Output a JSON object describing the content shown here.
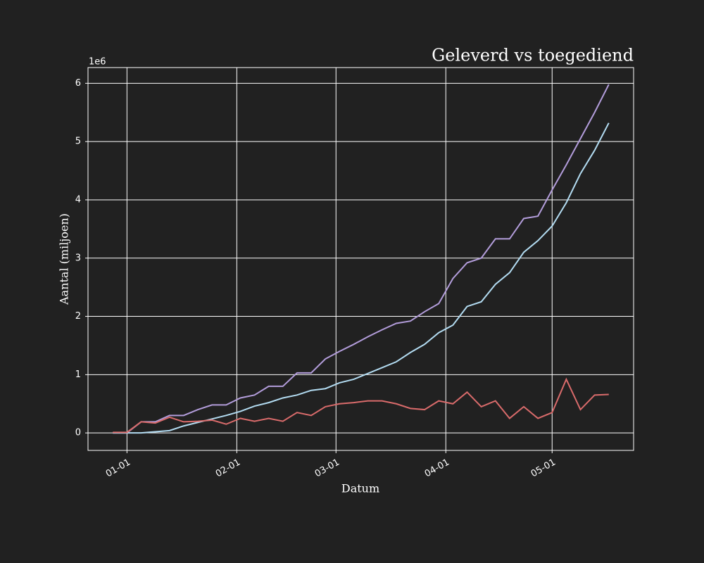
{
  "chart_data": {
    "type": "line",
    "title": "Geleverd vs toegediend",
    "x_label": "Datum",
    "y_label": "Aantal (miljoen)",
    "y_offset_label": "1e6",
    "x": [
      -4,
      0,
      4,
      8,
      12,
      16,
      20,
      24,
      28,
      32,
      36,
      40,
      44,
      48,
      52,
      56,
      60,
      64,
      68,
      72,
      76,
      80,
      84,
      88,
      92,
      96,
      100,
      104,
      108,
      112,
      116,
      120,
      124,
      128,
      132,
      136
    ],
    "series": [
      {
        "color": "#b39ddb",
        "values": [
          0,
          0,
          0.19,
          0.19,
          0.3,
          0.3,
          0.4,
          0.48,
          0.48,
          0.6,
          0.65,
          0.8,
          0.8,
          1.03,
          1.03,
          1.27,
          1.4,
          1.52,
          1.65,
          1.77,
          1.88,
          1.92,
          2.08,
          2.22,
          2.65,
          2.92,
          3.0,
          3.33,
          3.33,
          3.68,
          3.72,
          4.17,
          4.6,
          5.05,
          5.5,
          5.98
        ]
      },
      {
        "color": "#b3dcf2",
        "values": [
          0,
          0,
          0,
          0.02,
          0.04,
          0.12,
          0.18,
          0.24,
          0.3,
          0.37,
          0.46,
          0.52,
          0.6,
          0.65,
          0.73,
          0.76,
          0.86,
          0.92,
          1.02,
          1.12,
          1.22,
          1.38,
          1.52,
          1.72,
          1.85,
          2.17,
          2.25,
          2.55,
          2.75,
          3.1,
          3.3,
          3.55,
          3.95,
          4.45,
          4.85,
          5.32
        ]
      },
      {
        "color": "#d96b6b",
        "values": [
          0.01,
          0.01,
          0.19,
          0.17,
          0.27,
          0.19,
          0.2,
          0.22,
          0.15,
          0.25,
          0.2,
          0.25,
          0.2,
          0.35,
          0.3,
          0.45,
          0.5,
          0.52,
          0.55,
          0.55,
          0.5,
          0.42,
          0.4,
          0.55,
          0.5,
          0.7,
          0.45,
          0.55,
          0.25,
          0.45,
          0.25,
          0.35,
          0.92,
          0.4,
          0.65,
          0.66
        ]
      }
    ],
    "xlim": [
      -11,
      143
    ],
    "xticks": [
      {
        "value": 0,
        "label": "01-01"
      },
      {
        "value": 31,
        "label": "02-01"
      },
      {
        "value": 59,
        "label": "03-01"
      },
      {
        "value": 90,
        "label": "04-01"
      },
      {
        "value": 120,
        "label": "05-01"
      }
    ],
    "ylim": [
      -0.3,
      6.27
    ],
    "yticks": [
      0,
      1,
      2,
      3,
      4,
      5,
      6
    ],
    "grid": true
  }
}
